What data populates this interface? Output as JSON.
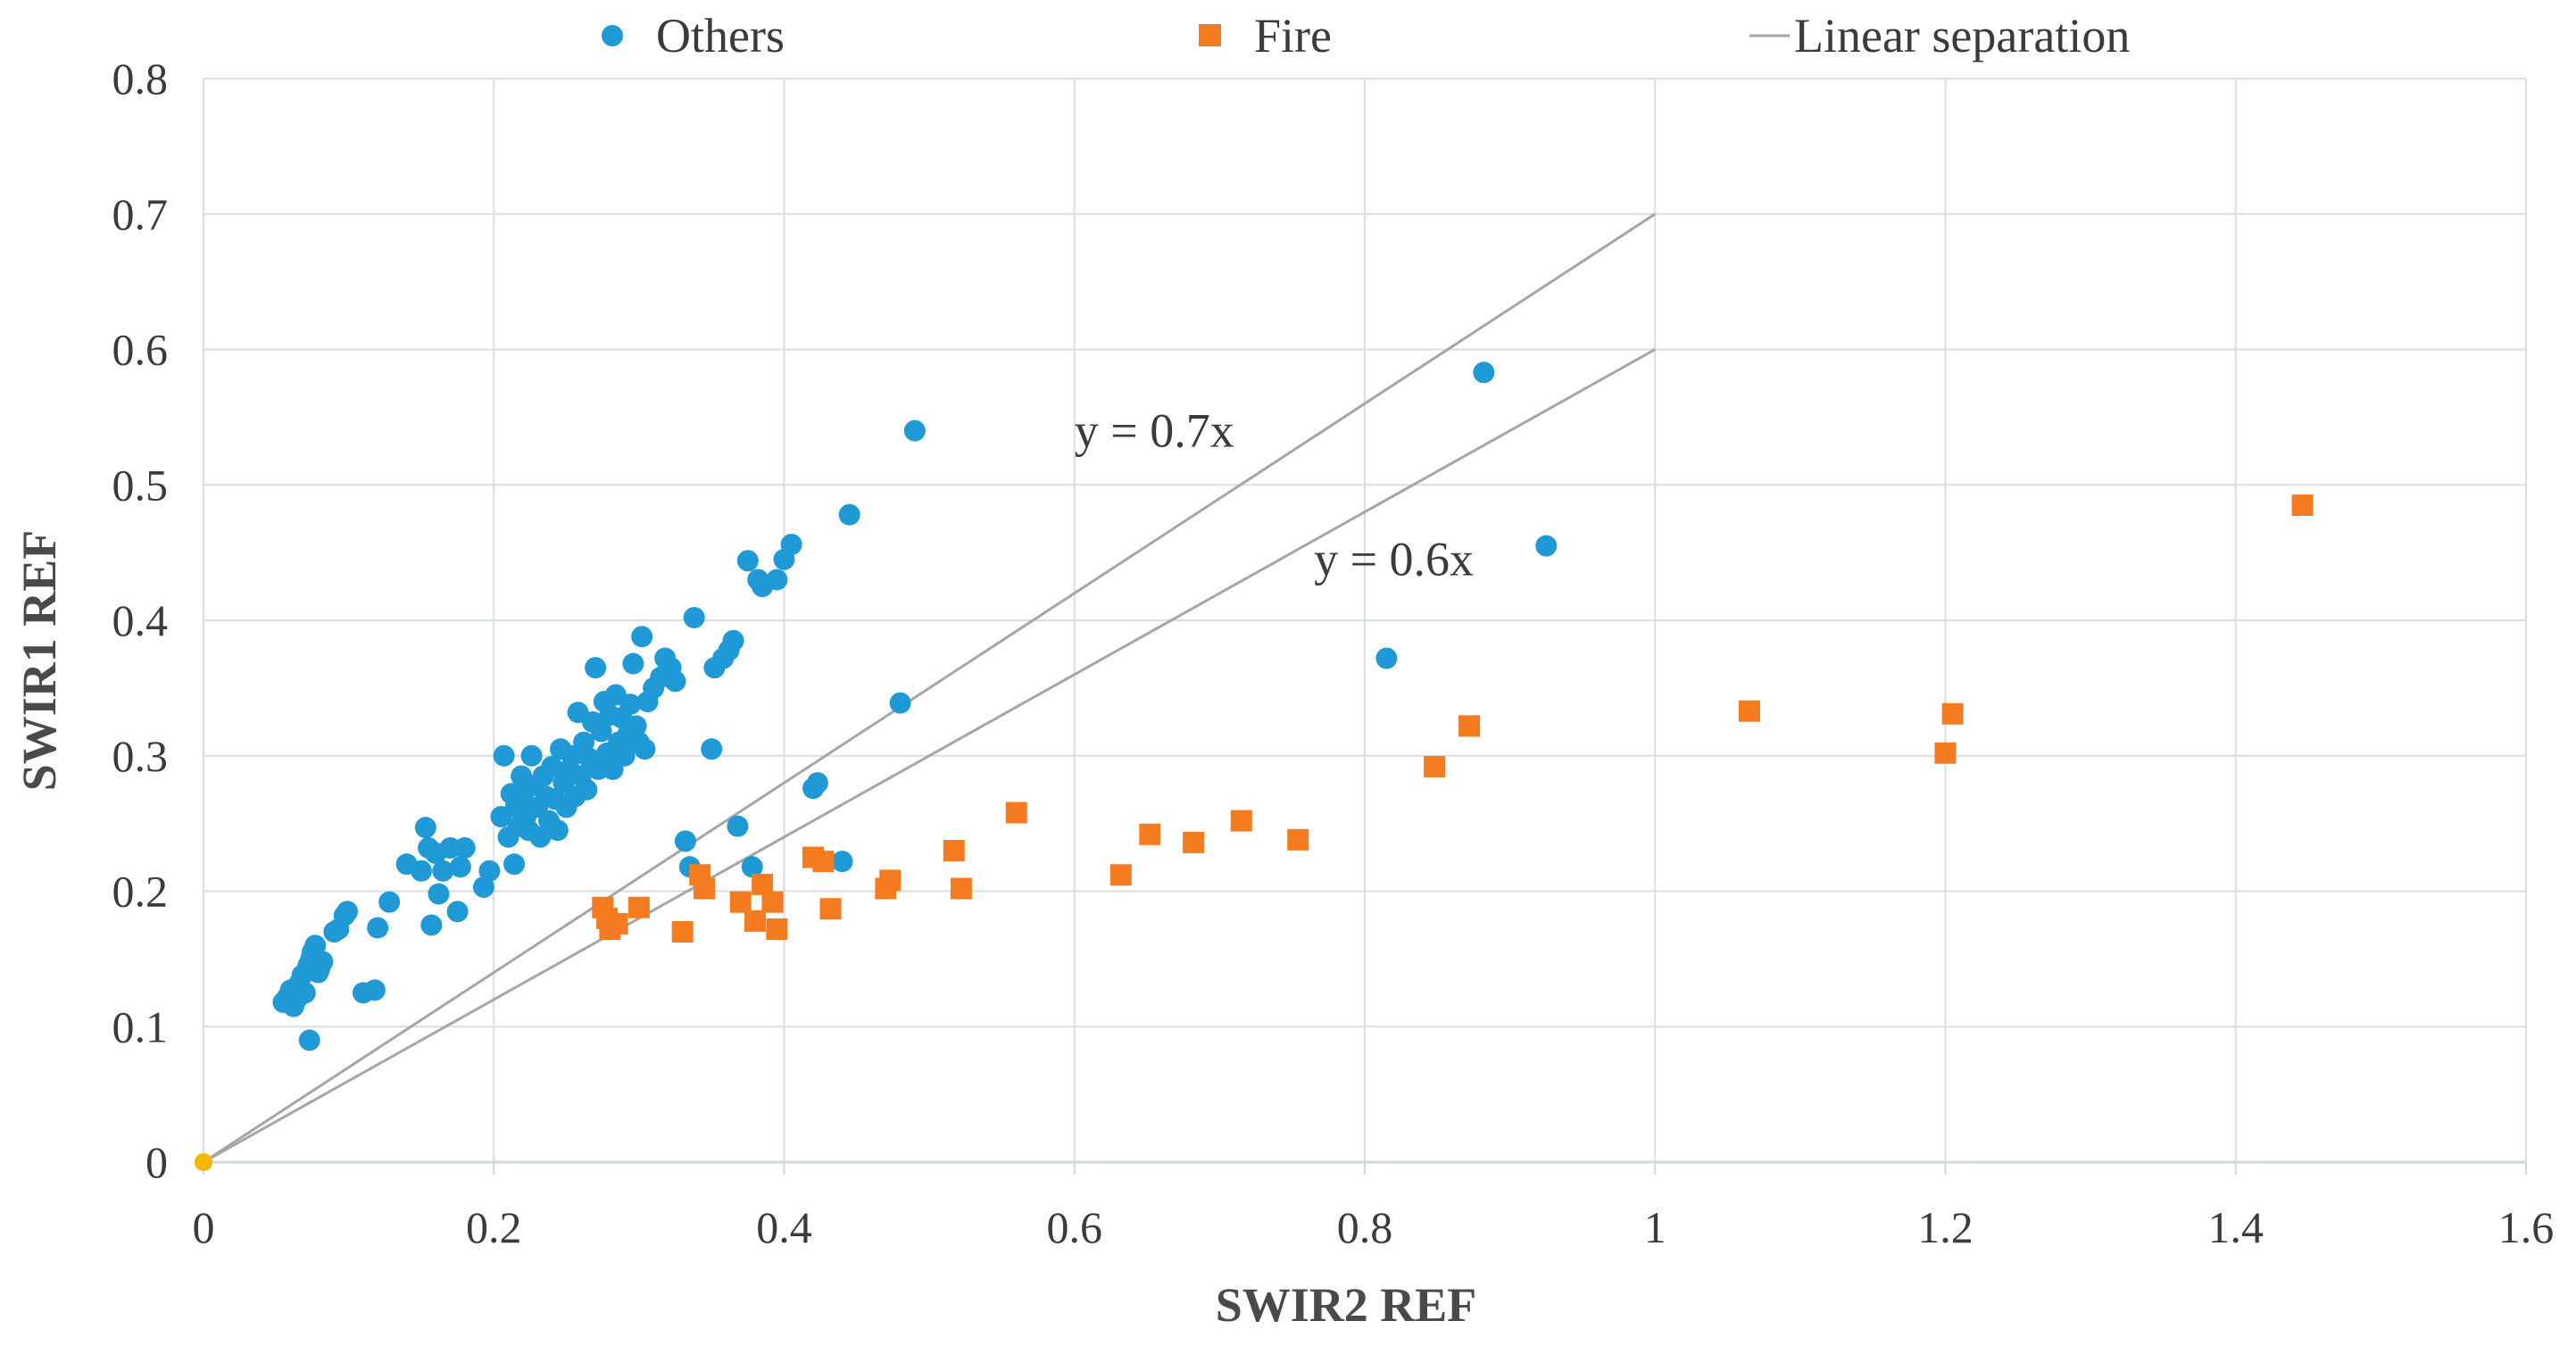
{
  "chart_data": {
    "type": "scatter",
    "title": "",
    "xlabel": "SWIR2 REF",
    "ylabel": "SWIR1 REF",
    "xlim": [
      0,
      1.6
    ],
    "ylim": [
      0,
      0.8
    ],
    "xticks": [
      0,
      0.2,
      0.4,
      0.6,
      0.8,
      1,
      1.2,
      1.4,
      1.6
    ],
    "yticks": [
      0,
      0.1,
      0.2,
      0.3,
      0.4,
      0.5,
      0.6,
      0.7,
      0.8
    ],
    "xtick_labels": [
      "0",
      "0.2",
      "0.4",
      "0.6",
      "0.8",
      "1",
      "1.2",
      "1.4",
      "1.6"
    ],
    "ytick_labels": [
      "0",
      "0.1",
      "0.2",
      "0.3",
      "0.4",
      "0.5",
      "0.6",
      "0.7",
      "0.8"
    ],
    "grid": true,
    "legend_position": "top",
    "series": [
      {
        "name": "Others",
        "marker": "circle",
        "color": "#1f9ad6",
        "points": [
          [
            0.055,
            0.118
          ],
          [
            0.058,
            0.122
          ],
          [
            0.06,
            0.127
          ],
          [
            0.062,
            0.115
          ],
          [
            0.064,
            0.12
          ],
          [
            0.066,
            0.132
          ],
          [
            0.068,
            0.138
          ],
          [
            0.07,
            0.125
          ],
          [
            0.072,
            0.145
          ],
          [
            0.073,
            0.09
          ],
          [
            0.074,
            0.15
          ],
          [
            0.075,
            0.155
          ],
          [
            0.077,
            0.16
          ],
          [
            0.079,
            0.14
          ],
          [
            0.08,
            0.143
          ],
          [
            0.082,
            0.148
          ],
          [
            0.09,
            0.17
          ],
          [
            0.093,
            0.172
          ],
          [
            0.097,
            0.182
          ],
          [
            0.099,
            0.185
          ],
          [
            0.11,
            0.125
          ],
          [
            0.118,
            0.127
          ],
          [
            0.12,
            0.173
          ],
          [
            0.128,
            0.192
          ],
          [
            0.14,
            0.22
          ],
          [
            0.15,
            0.215
          ],
          [
            0.153,
            0.247
          ],
          [
            0.155,
            0.232
          ],
          [
            0.157,
            0.175
          ],
          [
            0.16,
            0.228
          ],
          [
            0.162,
            0.198
          ],
          [
            0.165,
            0.215
          ],
          [
            0.17,
            0.232
          ],
          [
            0.175,
            0.185
          ],
          [
            0.177,
            0.218
          ],
          [
            0.18,
            0.232
          ],
          [
            0.193,
            0.203
          ],
          [
            0.197,
            0.215
          ],
          [
            0.205,
            0.255
          ],
          [
            0.207,
            0.3
          ],
          [
            0.21,
            0.24
          ],
          [
            0.212,
            0.272
          ],
          [
            0.214,
            0.22
          ],
          [
            0.215,
            0.262
          ],
          [
            0.217,
            0.248
          ],
          [
            0.219,
            0.285
          ],
          [
            0.22,
            0.27
          ],
          [
            0.222,
            0.255
          ],
          [
            0.224,
            0.245
          ],
          [
            0.226,
            0.3
          ],
          [
            0.228,
            0.278
          ],
          [
            0.23,
            0.262
          ],
          [
            0.232,
            0.24
          ],
          [
            0.234,
            0.285
          ],
          [
            0.236,
            0.27
          ],
          [
            0.238,
            0.252
          ],
          [
            0.24,
            0.292
          ],
          [
            0.242,
            0.268
          ],
          [
            0.244,
            0.245
          ],
          [
            0.246,
            0.305
          ],
          [
            0.248,
            0.28
          ],
          [
            0.25,
            0.262
          ],
          [
            0.252,
            0.29
          ],
          [
            0.254,
            0.3
          ],
          [
            0.256,
            0.27
          ],
          [
            0.258,
            0.332
          ],
          [
            0.26,
            0.285
          ],
          [
            0.262,
            0.31
          ],
          [
            0.264,
            0.275
          ],
          [
            0.266,
            0.298
          ],
          [
            0.268,
            0.325
          ],
          [
            0.27,
            0.365
          ],
          [
            0.272,
            0.29
          ],
          [
            0.274,
            0.318
          ],
          [
            0.276,
            0.34
          ],
          [
            0.278,
            0.302
          ],
          [
            0.28,
            0.33
          ],
          [
            0.282,
            0.29
          ],
          [
            0.284,
            0.345
          ],
          [
            0.286,
            0.31
          ],
          [
            0.288,
            0.328
          ],
          [
            0.29,
            0.3
          ],
          [
            0.292,
            0.315
          ],
          [
            0.294,
            0.338
          ],
          [
            0.296,
            0.368
          ],
          [
            0.298,
            0.322
          ],
          [
            0.3,
            0.31
          ],
          [
            0.302,
            0.388
          ],
          [
            0.304,
            0.305
          ],
          [
            0.306,
            0.34
          ],
          [
            0.31,
            0.35
          ],
          [
            0.315,
            0.358
          ],
          [
            0.318,
            0.372
          ],
          [
            0.322,
            0.365
          ],
          [
            0.325,
            0.355
          ],
          [
            0.332,
            0.237
          ],
          [
            0.335,
            0.218
          ],
          [
            0.338,
            0.402
          ],
          [
            0.35,
            0.305
          ],
          [
            0.352,
            0.365
          ],
          [
            0.358,
            0.372
          ],
          [
            0.362,
            0.378
          ],
          [
            0.365,
            0.385
          ],
          [
            0.368,
            0.248
          ],
          [
            0.375,
            0.444
          ],
          [
            0.378,
            0.218
          ],
          [
            0.382,
            0.43
          ],
          [
            0.385,
            0.425
          ],
          [
            0.395,
            0.43
          ],
          [
            0.4,
            0.445
          ],
          [
            0.405,
            0.456
          ],
          [
            0.42,
            0.276
          ],
          [
            0.423,
            0.28
          ],
          [
            0.44,
            0.222
          ],
          [
            0.445,
            0.478
          ],
          [
            0.48,
            0.339
          ],
          [
            0.49,
            0.54
          ],
          [
            0.815,
            0.372
          ],
          [
            0.882,
            0.583
          ],
          [
            0.925,
            0.455
          ]
        ]
      },
      {
        "name": "Fire",
        "marker": "square",
        "color": "#f47b20",
        "points": [
          [
            0.275,
            0.188
          ],
          [
            0.278,
            0.18
          ],
          [
            0.28,
            0.172
          ],
          [
            0.285,
            0.176
          ],
          [
            0.3,
            0.188
          ],
          [
            0.33,
            0.17
          ],
          [
            0.342,
            0.212
          ],
          [
            0.345,
            0.202
          ],
          [
            0.37,
            0.192
          ],
          [
            0.38,
            0.178
          ],
          [
            0.385,
            0.205
          ],
          [
            0.392,
            0.192
          ],
          [
            0.395,
            0.172
          ],
          [
            0.42,
            0.225
          ],
          [
            0.427,
            0.222
          ],
          [
            0.432,
            0.187
          ],
          [
            0.47,
            0.202
          ],
          [
            0.473,
            0.208
          ],
          [
            0.517,
            0.23
          ],
          [
            0.522,
            0.202
          ],
          [
            0.56,
            0.258
          ],
          [
            0.632,
            0.212
          ],
          [
            0.652,
            0.242
          ],
          [
            0.682,
            0.236
          ],
          [
            0.715,
            0.252
          ],
          [
            0.754,
            0.238
          ],
          [
            0.848,
            0.292
          ],
          [
            0.872,
            0.322
          ],
          [
            1.065,
            0.333
          ],
          [
            1.2,
            0.302
          ],
          [
            1.205,
            0.331
          ],
          [
            1.446,
            0.485
          ]
        ]
      },
      {
        "name": "Linear separation",
        "marker": "line",
        "color": "#a6a6a6",
        "lines": [
          {
            "label": "y = 0.7x",
            "x": [
              0,
              1
            ],
            "y": [
              0,
              0.7
            ],
            "label_at": [
              0.6,
              0.54
            ]
          },
          {
            "label": "y = 0.6x",
            "x": [
              0,
              1
            ],
            "y": [
              0,
              0.6
            ],
            "label_at": [
              0.765,
              0.445
            ]
          }
        ]
      }
    ],
    "origin_point": {
      "x": 0,
      "y": 0,
      "color": "#f5b800"
    },
    "colors": {
      "grid": "#d6dee6",
      "axis": "#cfd7df",
      "text": "#3b3b3b"
    }
  }
}
